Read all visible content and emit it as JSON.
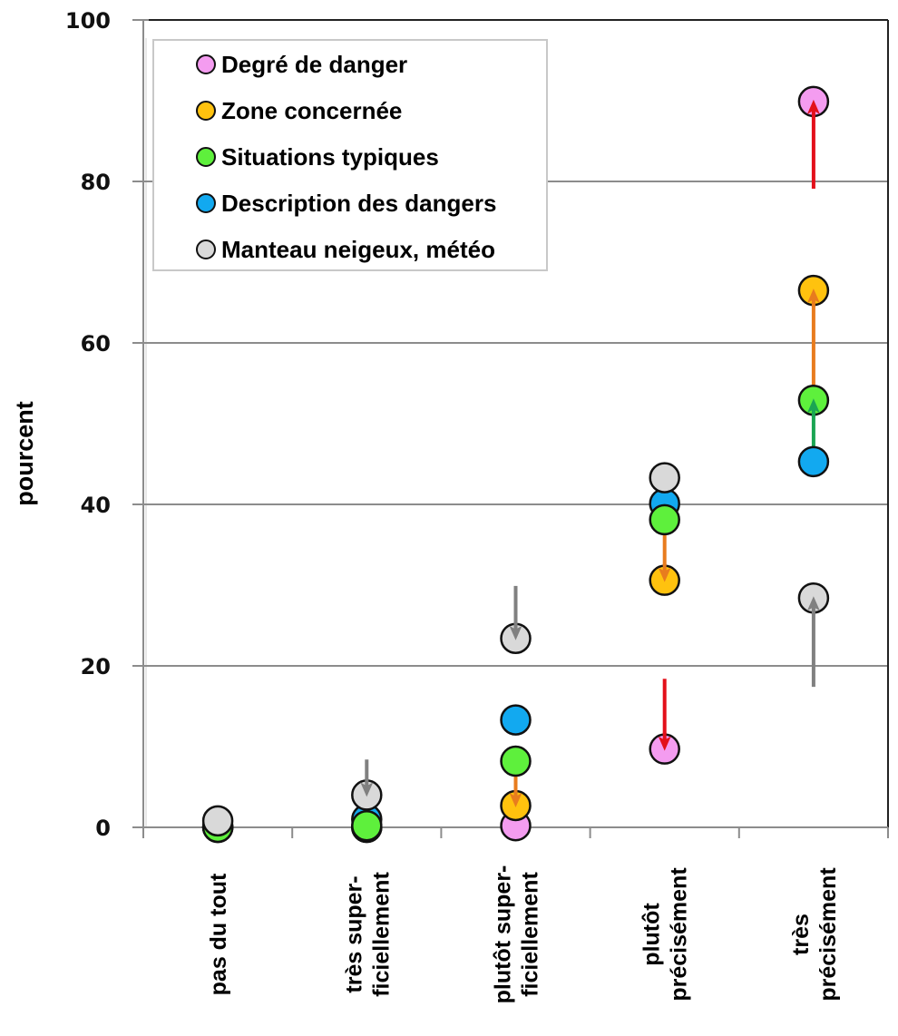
{
  "chart_data": {
    "type": "scatter",
    "title": "",
    "xlabel": "",
    "ylabel": "pourcent",
    "ylim": [
      0,
      100
    ],
    "yticks": [
      0,
      20,
      40,
      60,
      80,
      100
    ],
    "grid": "horizontal",
    "legend_position": "top-left",
    "categories": [
      [
        "pas du tout"
      ],
      [
        "très super-",
        "ficiellement"
      ],
      [
        "plutôt super-",
        "ficiellement"
      ],
      [
        "plutôt",
        "précisément"
      ],
      [
        "très",
        "précisément"
      ]
    ],
    "series": [
      {
        "name": "Degré de danger",
        "color": "#f49cf0",
        "values": [
          0,
          0,
          0.2,
          9.7,
          89.9
        ]
      },
      {
        "name": "Zone concernée",
        "color": "#ffc20e",
        "values": [
          0,
          0,
          2.7,
          30.6,
          66.5
        ]
      },
      {
        "name": "Situations typiques",
        "color": "#5ef03c",
        "values": [
          0,
          0.2,
          8.2,
          38.1,
          52.9
        ]
      },
      {
        "name": "Description des dangers",
        "color": "#12a9f0",
        "values": [
          0.1,
          1.0,
          13.3,
          40.1,
          45.3
        ]
      },
      {
        "name": "Manteau neigeux, météo",
        "color": "#d9d9d9",
        "values": [
          0.8,
          4.0,
          23.4,
          43.3,
          28.4
        ]
      }
    ],
    "arrows": [
      {
        "category": 1,
        "from": 8.4,
        "to": 4.0,
        "color": "#808080"
      },
      {
        "category": 2,
        "from": 29.9,
        "to": 23.4,
        "color": "#808080"
      },
      {
        "category": 2,
        "from": 8.1,
        "to": 2.7,
        "color": "#e87c1e"
      },
      {
        "category": 3,
        "from": 38.0,
        "to": 30.6,
        "color": "#e87c1e"
      },
      {
        "category": 3,
        "from": 18.4,
        "to": 9.7,
        "color": "#e3101a"
      },
      {
        "category": 4,
        "from": 79.1,
        "to": 89.9,
        "color": "#e3101a"
      },
      {
        "category": 4,
        "from": 52.9,
        "to": 66.5,
        "color": "#e87c1e"
      },
      {
        "category": 4,
        "from": 45.3,
        "to": 52.9,
        "color": "#1aa553"
      },
      {
        "category": 4,
        "from": 17.4,
        "to": 28.4,
        "color": "#808080"
      }
    ],
    "draw_order": [
      3,
      0,
      1,
      2,
      4
    ]
  }
}
